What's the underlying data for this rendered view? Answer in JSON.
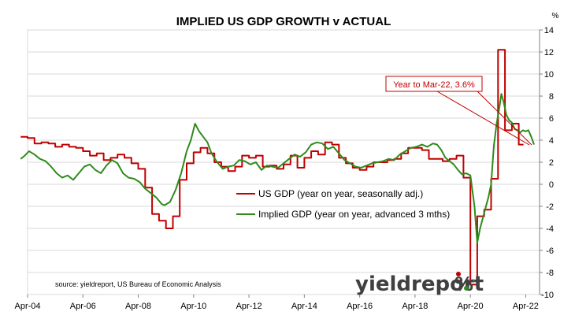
{
  "chart_data": {
    "type": "line",
    "title": "IMPLIED US GDP GROWTH v ACTUAL",
    "y_unit": "%",
    "ylim": [
      -10,
      14
    ],
    "y_ticks": [
      14,
      12,
      10,
      8,
      6,
      4,
      2,
      0,
      -2,
      -4,
      -6,
      -8,
      -10
    ],
    "x_range": [
      2004.25,
      2022.75
    ],
    "x_ticks": [
      {
        "label": "Apr-04",
        "x": 2004.25
      },
      {
        "label": "Apr-06",
        "x": 2006.25
      },
      {
        "label": "Apr-08",
        "x": 2008.25
      },
      {
        "label": "Apr-10",
        "x": 2010.25
      },
      {
        "label": "Apr-12",
        "x": 2012.25
      },
      {
        "label": "Apr-14",
        "x": 2014.25
      },
      {
        "label": "Apr-16",
        "x": 2016.25
      },
      {
        "label": "Apr-18",
        "x": 2018.25
      },
      {
        "label": "Apr-20",
        "x": 2020.25
      },
      {
        "label": "Apr-22",
        "x": 2022.25
      }
    ],
    "grid": true,
    "legend_position": "center",
    "series": [
      {
        "name": "US GDP (year on year, seasonally adj.)",
        "color": "#c00000",
        "step": true,
        "points": [
          [
            2004.0,
            4.3
          ],
          [
            2004.25,
            4.2
          ],
          [
            2004.5,
            3.7
          ],
          [
            2004.75,
            3.8
          ],
          [
            2005.0,
            3.7
          ],
          [
            2005.25,
            3.4
          ],
          [
            2005.5,
            3.6
          ],
          [
            2005.75,
            3.4
          ],
          [
            2006.0,
            3.3
          ],
          [
            2006.25,
            3.0
          ],
          [
            2006.5,
            2.6
          ],
          [
            2006.75,
            2.8
          ],
          [
            2007.0,
            2.2
          ],
          [
            2007.25,
            2.4
          ],
          [
            2007.5,
            2.7
          ],
          [
            2007.75,
            2.4
          ],
          [
            2008.0,
            1.9
          ],
          [
            2008.25,
            1.4
          ],
          [
            2008.5,
            -0.3
          ],
          [
            2008.75,
            -2.7
          ],
          [
            2009.0,
            -3.3
          ],
          [
            2009.25,
            -4.0
          ],
          [
            2009.5,
            -2.9
          ],
          [
            2009.75,
            0.4
          ],
          [
            2010.0,
            1.9
          ],
          [
            2010.25,
            2.9
          ],
          [
            2010.5,
            3.3
          ],
          [
            2010.75,
            2.8
          ],
          [
            2011.0,
            2.0
          ],
          [
            2011.25,
            1.6
          ],
          [
            2011.5,
            1.2
          ],
          [
            2011.75,
            1.6
          ],
          [
            2012.0,
            2.6
          ],
          [
            2012.25,
            2.4
          ],
          [
            2012.5,
            2.6
          ],
          [
            2012.75,
            1.6
          ],
          [
            2013.0,
            1.7
          ],
          [
            2013.25,
            1.4
          ],
          [
            2013.5,
            1.8
          ],
          [
            2013.75,
            2.6
          ],
          [
            2014.0,
            1.5
          ],
          [
            2014.25,
            2.4
          ],
          [
            2014.5,
            3.0
          ],
          [
            2014.75,
            2.7
          ],
          [
            2015.0,
            3.8
          ],
          [
            2015.25,
            3.6
          ],
          [
            2015.5,
            2.4
          ],
          [
            2015.75,
            1.9
          ],
          [
            2016.0,
            1.5
          ],
          [
            2016.25,
            1.3
          ],
          [
            2016.5,
            1.6
          ],
          [
            2016.75,
            2.0
          ],
          [
            2017.0,
            2.0
          ],
          [
            2017.25,
            2.2
          ],
          [
            2017.5,
            2.3
          ],
          [
            2017.75,
            2.8
          ],
          [
            2018.0,
            3.3
          ],
          [
            2018.25,
            3.3
          ],
          [
            2018.5,
            3.1
          ],
          [
            2018.75,
            2.3
          ],
          [
            2019.0,
            2.3
          ],
          [
            2019.25,
            2.1
          ],
          [
            2019.5,
            2.3
          ],
          [
            2019.75,
            2.6
          ],
          [
            2020.0,
            0.6
          ],
          [
            2020.25,
            -9.1
          ],
          [
            2020.5,
            -2.9
          ],
          [
            2020.75,
            -2.3
          ],
          [
            2021.0,
            0.5
          ],
          [
            2021.25,
            12.2
          ],
          [
            2021.5,
            4.9
          ],
          [
            2021.75,
            5.5
          ],
          [
            2022.0,
            3.6
          ]
        ]
      },
      {
        "name": "Implied GDP (year on year, advanced 3 mths)",
        "color": "#2e8b1c",
        "step": false,
        "points": [
          [
            2004.0,
            2.3
          ],
          [
            2004.15,
            2.6
          ],
          [
            2004.3,
            3.0
          ],
          [
            2004.5,
            2.7
          ],
          [
            2004.7,
            2.3
          ],
          [
            2004.9,
            2.1
          ],
          [
            2005.1,
            1.6
          ],
          [
            2005.3,
            1.0
          ],
          [
            2005.5,
            0.6
          ],
          [
            2005.7,
            0.8
          ],
          [
            2005.9,
            0.4
          ],
          [
            2006.1,
            1.0
          ],
          [
            2006.3,
            1.6
          ],
          [
            2006.5,
            1.8
          ],
          [
            2006.7,
            1.3
          ],
          [
            2006.9,
            1.0
          ],
          [
            2007.1,
            1.7
          ],
          [
            2007.3,
            2.2
          ],
          [
            2007.5,
            1.9
          ],
          [
            2007.7,
            1.0
          ],
          [
            2007.9,
            0.6
          ],
          [
            2008.1,
            0.5
          ],
          [
            2008.3,
            0.2
          ],
          [
            2008.5,
            -0.4
          ],
          [
            2008.7,
            -0.8
          ],
          [
            2008.9,
            -1.2
          ],
          [
            2009.1,
            -1.8
          ],
          [
            2009.2,
            -1.9
          ],
          [
            2009.4,
            -1.6
          ],
          [
            2009.6,
            -0.5
          ],
          [
            2009.8,
            1.0
          ],
          [
            2010.0,
            3.0
          ],
          [
            2010.15,
            4.0
          ],
          [
            2010.3,
            5.5
          ],
          [
            2010.45,
            4.8
          ],
          [
            2010.6,
            4.3
          ],
          [
            2010.75,
            3.8
          ],
          [
            2010.9,
            2.8
          ],
          [
            2011.1,
            2.0
          ],
          [
            2011.3,
            1.4
          ],
          [
            2011.5,
            1.6
          ],
          [
            2011.7,
            1.7
          ],
          [
            2011.9,
            2.2
          ],
          [
            2012.1,
            2.1
          ],
          [
            2012.3,
            1.8
          ],
          [
            2012.5,
            2.0
          ],
          [
            2012.7,
            1.3
          ],
          [
            2012.9,
            1.7
          ],
          [
            2013.1,
            1.6
          ],
          [
            2013.3,
            1.5
          ],
          [
            2013.5,
            1.9
          ],
          [
            2013.7,
            2.3
          ],
          [
            2013.9,
            2.7
          ],
          [
            2014.1,
            2.5
          ],
          [
            2014.3,
            2.9
          ],
          [
            2014.5,
            3.6
          ],
          [
            2014.7,
            3.8
          ],
          [
            2014.9,
            3.7
          ],
          [
            2015.1,
            3.2
          ],
          [
            2015.3,
            3.4
          ],
          [
            2015.5,
            2.8
          ],
          [
            2015.7,
            2.2
          ],
          [
            2015.9,
            1.9
          ],
          [
            2016.1,
            1.6
          ],
          [
            2016.3,
            1.5
          ],
          [
            2016.5,
            1.7
          ],
          [
            2016.7,
            1.9
          ],
          [
            2016.9,
            2.0
          ],
          [
            2017.1,
            2.1
          ],
          [
            2017.3,
            2.3
          ],
          [
            2017.5,
            2.2
          ],
          [
            2017.7,
            2.7
          ],
          [
            2017.9,
            3.0
          ],
          [
            2018.1,
            3.3
          ],
          [
            2018.3,
            3.4
          ],
          [
            2018.5,
            3.6
          ],
          [
            2018.7,
            3.4
          ],
          [
            2018.9,
            3.7
          ],
          [
            2019.05,
            3.6
          ],
          [
            2019.2,
            3.1
          ],
          [
            2019.35,
            2.4
          ],
          [
            2019.5,
            2.1
          ],
          [
            2019.65,
            1.8
          ],
          [
            2019.8,
            1.3
          ],
          [
            2019.95,
            0.9
          ],
          [
            2020.1,
            1.0
          ],
          [
            2020.25,
            0.8
          ],
          [
            2020.4,
            -2.0
          ],
          [
            2020.5,
            -5.3
          ],
          [
            2020.6,
            -4.0
          ],
          [
            2020.75,
            -2.6
          ],
          [
            2020.9,
            -1.2
          ],
          [
            2021.0,
            0.0
          ],
          [
            2021.1,
            3.5
          ],
          [
            2021.2,
            5.5
          ],
          [
            2021.3,
            7.0
          ],
          [
            2021.37,
            8.2
          ],
          [
            2021.45,
            7.5
          ],
          [
            2021.55,
            6.3
          ],
          [
            2021.65,
            5.8
          ],
          [
            2021.75,
            5.6
          ],
          [
            2021.85,
            5.0
          ],
          [
            2021.95,
            4.9
          ],
          [
            2022.05,
            4.7
          ],
          [
            2022.15,
            4.9
          ],
          [
            2022.25,
            4.8
          ],
          [
            2022.35,
            4.9
          ],
          [
            2022.45,
            4.3
          ],
          [
            2022.55,
            3.6
          ]
        ]
      }
    ],
    "annotations": [
      {
        "text": "Year to Mar-22, 3.6%",
        "x": 2022.0,
        "y": 3.6
      }
    ],
    "source_note": "source: yieldreport, US Bureau of Economic Analysis",
    "logo": {
      "word": "yieldreport",
      "symbol": "%"
    }
  }
}
